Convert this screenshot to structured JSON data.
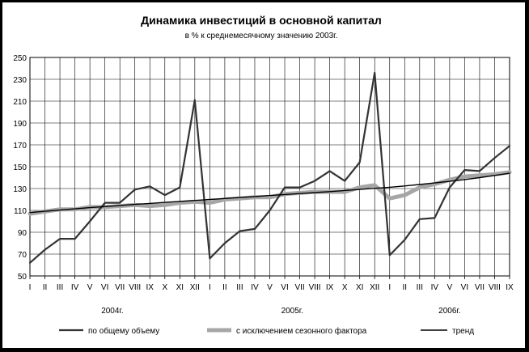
{
  "chart_data": {
    "type": "line",
    "title": "Динамика инвестиций в основной капитал",
    "subtitle": "в % к среднемесячному значению 2003г.",
    "ylim": [
      50,
      250
    ],
    "y_ticks": [
      50,
      70,
      90,
      110,
      130,
      150,
      170,
      190,
      210,
      230,
      250
    ],
    "grid": true,
    "categories": [
      "I",
      "II",
      "III",
      "IV",
      "V",
      "VI",
      "VII",
      "VIII",
      "IX",
      "X",
      "XI",
      "XII",
      "I",
      "II",
      "III",
      "IV",
      "V",
      "VI",
      "VII",
      "VIII",
      "IX",
      "X",
      "XI",
      "XII",
      "I",
      "II",
      "III",
      "IV",
      "V",
      "VI",
      "VII",
      "VIII",
      "IX"
    ],
    "year_labels": [
      {
        "label": "2004г.",
        "start_index": 0,
        "end_index": 11
      },
      {
        "label": "2005г.",
        "start_index": 12,
        "end_index": 23
      },
      {
        "label": "2006г.",
        "start_index": 24,
        "end_index": 32
      }
    ],
    "legend_position": "bottom",
    "series": [
      {
        "name": "по общему объему",
        "style": "thin-dark",
        "color": "#333333",
        "values": [
          62,
          74,
          84,
          84,
          100,
          117,
          117,
          129,
          132,
          124,
          131,
          211,
          66,
          80,
          91,
          93,
          110,
          131,
          131,
          137,
          146,
          137,
          154,
          236,
          69,
          83,
          102,
          103,
          131,
          147,
          146,
          158,
          169
        ]
      },
      {
        "name": "с исключением сезонного фактора",
        "style": "thick-gray",
        "color": "#a6a6a6",
        "values": [
          107,
          109,
          111,
          111,
          113,
          113,
          114,
          115,
          114,
          115,
          117,
          118,
          117,
          120,
          121,
          122,
          122,
          125,
          126,
          127,
          127,
          127,
          131,
          133,
          121,
          124,
          131,
          134,
          138,
          141,
          142,
          143,
          145
        ]
      },
      {
        "name": "тренд",
        "style": "thin-black",
        "color": "#000000",
        "values": [
          108,
          109.2,
          110.3,
          111.4,
          112.5,
          113.5,
          114.5,
          115.5,
          116.4,
          117.3,
          118.2,
          119.1,
          120,
          120.9,
          121.8,
          122.7,
          123.6,
          124.5,
          125.4,
          126.3,
          127.2,
          128.2,
          129.2,
          130.2,
          131.2,
          132.4,
          133.7,
          135.1,
          136.6,
          138.2,
          140,
          142,
          144
        ]
      }
    ]
  }
}
